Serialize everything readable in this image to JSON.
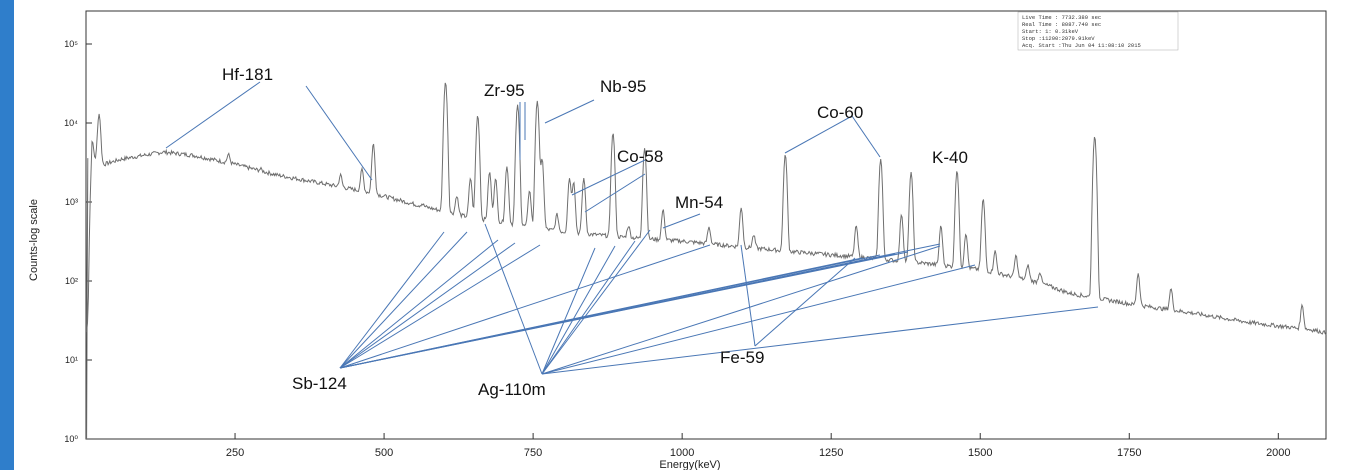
{
  "chart_data": {
    "type": "line",
    "xlabel": "Energy(keV)",
    "ylabel": "Counts-log scale",
    "xlim": [
      0,
      2080
    ],
    "ylim_log10": [
      0,
      5
    ],
    "y_scale": "log",
    "x_ticks": [
      "250",
      "500",
      "750",
      "1000",
      "1250",
      "1500",
      "1750",
      "2000"
    ],
    "y_ticks": [
      "10⁰",
      "10¹",
      "10²",
      "10³",
      "10⁴",
      "10⁵"
    ],
    "info_box": [
      "Live Time  : 7732.380 sec",
      "Real Time  : 8087.740 sec",
      "Start:     1:   0.31keV",
      "Stop  :11200:2079.91keV",
      "Acq. Start :Thu Jun 04 11:08:10 2015"
    ],
    "spectrum": {
      "baseline": [
        [
          3,
          1.5
        ],
        [
          10,
          3600
        ],
        [
          30,
          3000
        ],
        [
          60,
          3500
        ],
        [
          130,
          4300
        ],
        [
          180,
          3900
        ],
        [
          250,
          3000
        ],
        [
          320,
          2200
        ],
        [
          400,
          1700
        ],
        [
          480,
          1300
        ],
        [
          560,
          900
        ],
        [
          640,
          650
        ],
        [
          720,
          520
        ],
        [
          800,
          420
        ],
        [
          900,
          360
        ],
        [
          1000,
          320
        ],
        [
          1100,
          270
        ],
        [
          1200,
          230
        ],
        [
          1300,
          200
        ],
        [
          1400,
          170
        ],
        [
          1500,
          140
        ],
        [
          1600,
          95
        ],
        [
          1650,
          70
        ],
        [
          1700,
          60
        ],
        [
          1760,
          50
        ],
        [
          1850,
          40
        ],
        [
          1950,
          30
        ],
        [
          2000,
          27
        ],
        [
          2060,
          24
        ],
        [
          2079,
          22
        ]
      ],
      "peaks": [
        [
          10,
          6000
        ],
        [
          22,
          13000
        ],
        [
          239,
          4000
        ],
        [
          293,
          2600
        ],
        [
          427,
          2200
        ],
        [
          463,
          2600
        ],
        [
          482,
          5500
        ],
        [
          511,
          1000
        ],
        [
          564,
          950
        ],
        [
          603,
          33000
        ],
        [
          622,
          1200
        ],
        [
          645,
          2000
        ],
        [
          657,
          12500
        ],
        [
          677,
          2400
        ],
        [
          687,
          2000
        ],
        [
          706,
          2800
        ],
        [
          724,
          17000
        ],
        [
          744,
          1400
        ],
        [
          757,
          19000
        ],
        [
          765,
          3500
        ],
        [
          790,
          700
        ],
        [
          811,
          2000
        ],
        [
          818,
          1800
        ],
        [
          835,
          2000
        ],
        [
          884,
          7500
        ],
        [
          910,
          500
        ],
        [
          937,
          4800
        ],
        [
          968,
          800
        ],
        [
          1045,
          480
        ],
        [
          1099,
          850
        ],
        [
          1120,
          380
        ],
        [
          1173,
          4000
        ],
        [
          1292,
          500
        ],
        [
          1333,
          3500
        ],
        [
          1368,
          700
        ],
        [
          1384,
          2400
        ],
        [
          1434,
          500
        ],
        [
          1461,
          2500
        ],
        [
          1476,
          400
        ],
        [
          1505,
          1100
        ],
        [
          1525,
          240
        ],
        [
          1560,
          210
        ],
        [
          1580,
          160
        ],
        [
          1600,
          130
        ],
        [
          1692,
          6800
        ],
        [
          1765,
          125
        ],
        [
          1820,
          80
        ],
        [
          2040,
          50
        ]
      ]
    },
    "annotations": {
      "labels": [
        "Hf-181",
        "Zr-95",
        "Nb-95",
        "Co-58",
        "Mn-54",
        "Co-60",
        "K-40",
        "Sb-124",
        "Ag-110m",
        "Fe-59"
      ]
    }
  },
  "colors": {
    "background_side": "#2f7ecb",
    "spectrum_line": "#6f6f6f",
    "leader_line": "#4a77b5",
    "axis": "#333333"
  }
}
